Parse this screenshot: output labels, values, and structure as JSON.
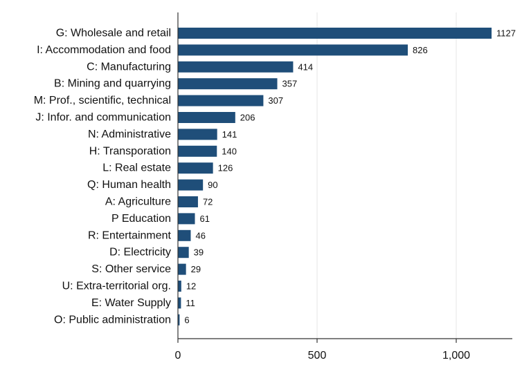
{
  "chart_data": {
    "type": "bar",
    "orientation": "horizontal",
    "title": "",
    "xlabel": "",
    "ylabel": "",
    "categories": [
      "G: Wholesale and retail",
      "I: Accommodation and food",
      "C: Manufacturing",
      "B: Mining and quarrying",
      "M: Prof., scientific, technical",
      "J: Infor. and communication",
      "N: Administrative",
      "H: Transporation",
      "L: Real estate",
      "Q: Human health",
      "A: Agriculture",
      "P Education",
      "R: Entertainment",
      "D: Electricity",
      "S: Other service",
      "U: Extra-territorial org.",
      "E: Water Supply",
      "O: Public administration"
    ],
    "values": [
      1127,
      826,
      414,
      357,
      307,
      206,
      141,
      140,
      126,
      90,
      72,
      61,
      46,
      39,
      29,
      12,
      11,
      6
    ],
    "value_labels": [
      "1127",
      "826",
      "414",
      "357",
      "307",
      "206",
      "141",
      "140",
      "126",
      "90",
      "72",
      "61",
      "46",
      "39",
      "29",
      "12",
      "11",
      "6"
    ],
    "xlim": [
      0,
      1180
    ],
    "x_ticks": [
      0,
      500,
      1000
    ],
    "x_tick_labels": [
      "0",
      "500",
      "1,000"
    ],
    "grid": true,
    "legend": "none",
    "colors": {
      "bar": "#1f4e79",
      "grid": "#e6e6e6",
      "axis": "#333333"
    }
  }
}
